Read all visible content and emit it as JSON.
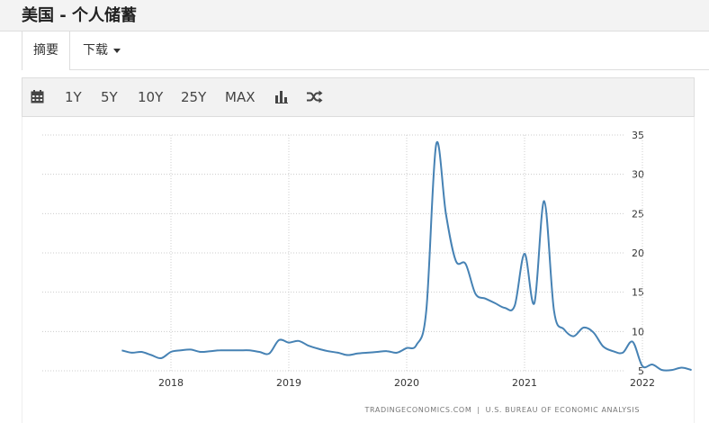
{
  "header": {
    "title": "美国 - 个人储蓄"
  },
  "tabs": {
    "summary": "摘要",
    "download": "下载"
  },
  "toolbar": {
    "calendar_icon": "calendar-icon",
    "ranges": [
      "1Y",
      "5Y",
      "10Y",
      "25Y",
      "MAX"
    ],
    "chart_type_icon": "bar-chart-icon",
    "compare_icon": "shuffle-icon"
  },
  "colors": {
    "line": "#4682b4",
    "grid": "#cccccc"
  },
  "source": {
    "left": "TRADINGECONOMICS.COM",
    "separator": "|",
    "right": "U.S. BUREAU OF ECONOMIC ANALYSIS"
  },
  "chart_data": {
    "type": "line",
    "title": "",
    "xlabel": "",
    "ylabel": "",
    "x_ticks": [
      "2018",
      "2019",
      "2020",
      "2021",
      "2022"
    ],
    "y_ticks": [
      5,
      10,
      15,
      20,
      25,
      30,
      35
    ],
    "ylim": [
      5,
      35
    ],
    "grid": "dotted",
    "y_axis_side": "right",
    "series": [
      {
        "x": [
          "2017-08",
          "2017-09",
          "2017-10",
          "2017-11",
          "2017-12",
          "2018-01",
          "2018-02",
          "2018-03",
          "2018-04",
          "2018-05",
          "2018-06",
          "2018-07",
          "2018-08",
          "2018-09",
          "2018-10",
          "2018-11",
          "2018-12",
          "2019-01",
          "2019-02",
          "2019-03",
          "2019-04",
          "2019-05",
          "2019-06",
          "2019-07",
          "2019-08",
          "2019-09",
          "2019-10",
          "2019-11",
          "2019-12",
          "2020-01",
          "2020-02",
          "2020-03",
          "2020-04",
          "2020-05",
          "2020-06",
          "2020-07",
          "2020-08",
          "2020-09",
          "2020-10",
          "2020-11",
          "2020-12",
          "2021-01",
          "2021-02",
          "2021-03",
          "2021-04",
          "2021-05",
          "2021-06",
          "2021-07",
          "2021-08",
          "2021-09",
          "2021-10",
          "2021-11",
          "2021-12",
          "2022-01",
          "2022-02",
          "2022-03",
          "2022-04",
          "2022-05",
          "2022-06"
        ],
        "values": [
          7.6,
          7.3,
          7.4,
          7.0,
          6.6,
          7.4,
          7.6,
          7.7,
          7.4,
          7.5,
          7.6,
          7.6,
          7.6,
          7.6,
          7.4,
          7.2,
          8.9,
          8.6,
          8.8,
          8.2,
          7.8,
          7.5,
          7.3,
          7.0,
          7.2,
          7.3,
          7.4,
          7.5,
          7.3,
          7.9,
          8.3,
          12.7,
          33.8,
          24.9,
          19.0,
          18.6,
          14.8,
          14.2,
          13.6,
          13.0,
          13.3,
          19.9,
          13.6,
          26.6,
          12.6,
          10.3,
          9.4,
          10.5,
          9.9,
          8.1,
          7.5,
          7.3,
          8.7,
          5.6,
          5.8,
          5.1,
          5.1,
          5.4,
          5.1
        ]
      }
    ]
  }
}
